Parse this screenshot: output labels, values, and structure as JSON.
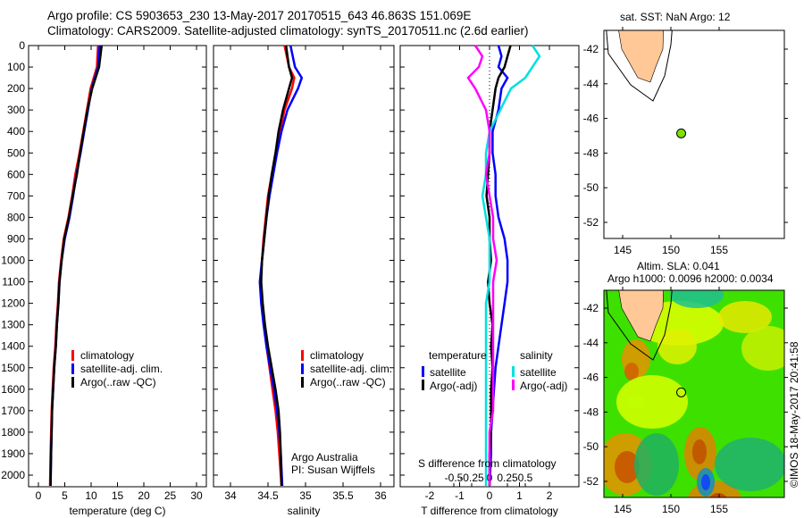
{
  "title": {
    "line1": "Argo profile: CS 5903653_230 13-May-2017 20170515_643 46.863S 151.069E",
    "line2": "Climatology: CARS2009. Satellite-adjusted climatology: synTS_20170511.nc (2.6d earlier)"
  },
  "colors": {
    "climatology": "#ff0000",
    "satellite": "#0000ff",
    "argo": "#000000",
    "sal_sat": "#00e0e0",
    "sal_argo": "#ff00ff",
    "land": "#ffc896",
    "ocean_mark": "#80e000"
  },
  "chart_data": [
    {
      "type": "line",
      "xlabel": "temperature (deg C)",
      "ylabel": "",
      "xlim": [
        -1,
        31
      ],
      "ylim": [
        2050,
        0
      ],
      "xticks": [
        "0",
        "5",
        "10",
        "15",
        "20",
        "25",
        "30"
      ],
      "xtick_values": [
        0,
        5,
        10,
        15,
        20,
        25,
        30
      ],
      "yticks": [
        "0",
        "100",
        "200",
        "300",
        "400",
        "500",
        "600",
        "700",
        "800",
        "900",
        "1000",
        "1100",
        "1200",
        "1300",
        "1400",
        "1500",
        "1600",
        "1700",
        "1800",
        "1900",
        "2000"
      ],
      "depth": [
        0,
        100,
        200,
        300,
        400,
        500,
        600,
        700,
        800,
        900,
        1000,
        1100,
        1200,
        1300,
        1400,
        1500,
        1600,
        1700,
        1800,
        1900,
        2050
      ],
      "series": [
        {
          "name": "climatology",
          "color": "#ff0000",
          "values": [
            11.3,
            11.1,
            9.9,
            9.2,
            8.5,
            7.8,
            7.0,
            6.4,
            5.7,
            4.8,
            4.3,
            3.9,
            3.7,
            3.4,
            3.2,
            2.9,
            2.7,
            2.5,
            2.4,
            2.3,
            2.2
          ]
        },
        {
          "name": "satellite-adj. clim.",
          "color": "#0000ff",
          "values": [
            11.6,
            11.3,
            10.1,
            9.4,
            8.7,
            8.0,
            7.2,
            6.6,
            5.9,
            5.0,
            4.4,
            4.0,
            3.8,
            3.5,
            3.3,
            3.0,
            2.8,
            2.6,
            2.5,
            2.4,
            2.3
          ]
        },
        {
          "name": "Argo(..raw -QC)",
          "color": "#000000",
          "values": [
            12.0,
            11.5,
            10.2,
            9.3,
            8.6,
            7.9,
            7.3,
            6.5,
            5.8,
            4.9,
            4.4,
            4.0,
            3.8,
            3.5,
            3.3,
            3.0,
            2.8,
            2.6,
            2.5,
            2.4,
            2.3
          ]
        }
      ]
    },
    {
      "type": "line",
      "xlabel": "salinity",
      "xlim": [
        33.8,
        36.2
      ],
      "ylim": [
        2050,
        0
      ],
      "xticks": [
        "34",
        "34.5",
        "35",
        "35.5",
        "36"
      ],
      "xtick_values": [
        34,
        34.5,
        35,
        35.5,
        36
      ],
      "depth": [
        0,
        100,
        150,
        200,
        300,
        400,
        500,
        600,
        700,
        800,
        900,
        1000,
        1100,
        1200,
        1300,
        1400,
        1500,
        1600,
        1700,
        1800,
        1900,
        2050
      ],
      "series": [
        {
          "name": "climatology",
          "color": "#ff0000",
          "values": [
            34.72,
            34.78,
            34.85,
            34.82,
            34.72,
            34.66,
            34.6,
            34.55,
            34.5,
            34.47,
            34.44,
            34.42,
            34.4,
            34.42,
            34.45,
            34.48,
            34.52,
            34.56,
            34.6,
            34.63,
            34.65,
            34.68
          ]
        },
        {
          "name": "satellite-adj. clim.",
          "color": "#0000ff",
          "values": [
            34.8,
            34.86,
            34.95,
            34.9,
            34.76,
            34.68,
            34.62,
            34.57,
            34.52,
            34.48,
            34.45,
            34.42,
            34.39,
            34.41,
            34.44,
            34.48,
            34.53,
            34.58,
            34.62,
            34.65,
            34.67,
            34.69
          ]
        },
        {
          "name": "Argo(..raw -QC)",
          "color": "#000000",
          "values": [
            34.74,
            34.78,
            34.82,
            34.78,
            34.7,
            34.64,
            34.6,
            34.55,
            34.51,
            34.48,
            34.45,
            34.42,
            34.41,
            34.43,
            34.46,
            34.5,
            34.55,
            34.6,
            34.64,
            34.66,
            34.67,
            34.68
          ]
        }
      ],
      "annotation": [
        "Argo Australia",
        "PI: Susan Wijffels"
      ]
    },
    {
      "type": "line",
      "xlabel": "T difference from climatology",
      "x2label": "S difference from climatology",
      "xlim": [
        -2.9,
        2.9
      ],
      "ylim": [
        2050,
        0
      ],
      "xticks": [
        "-2",
        "-1",
        "0",
        "1",
        "2"
      ],
      "xtick_values": [
        -2,
        -1,
        0,
        1,
        2
      ],
      "x2ticks": [
        "-0.5",
        "-0.25",
        "0",
        "0.25",
        "0.5"
      ],
      "x2tick_values": [
        -0.5,
        -0.25,
        0,
        0.25,
        0.5
      ],
      "depth": [
        0,
        50,
        100,
        150,
        200,
        300,
        400,
        500,
        600,
        700,
        800,
        900,
        1000,
        1100,
        1200,
        1300,
        1400,
        1500,
        1600,
        1700,
        1800,
        1900,
        2050
      ],
      "legend_headers": [
        "temperature",
        "salinity"
      ],
      "series": [
        {
          "name": "satellite",
          "group": "temperature",
          "color": "#0000ff",
          "values": [
            0.3,
            0.4,
            0.3,
            0.6,
            0.4,
            0.3,
            0.1,
            0.1,
            0.2,
            0.2,
            0.3,
            0.5,
            0.6,
            0.6,
            0.5,
            0.4,
            0.3,
            0.2,
            0.15,
            0.1,
            0.05,
            0.05,
            0.0
          ]
        },
        {
          "name": "Argo(-adj)",
          "group": "temperature",
          "color": "#000000",
          "values": [
            0.7,
            0.6,
            0.5,
            0.3,
            0.2,
            0.1,
            0.0,
            0.0,
            -0.05,
            -0.1,
            0.0,
            0.0,
            0.05,
            -0.05,
            0.0,
            0.1,
            0.05,
            0.1,
            0.05,
            0.05,
            0.05,
            0.0,
            0.0
          ]
        },
        {
          "name": "satellite",
          "group": "salinity",
          "color": "#00e0e0",
          "values": [
            0.6,
            0.7,
            0.6,
            0.5,
            0.3,
            0.15,
            0.0,
            -0.05,
            -0.05,
            -0.1,
            -0.05,
            0.0,
            0.0,
            0.0,
            -0.05,
            -0.05,
            -0.05,
            -0.05,
            -0.05,
            -0.05,
            -0.05,
            -0.05,
            -0.05
          ]
        },
        {
          "name": "Argo(-adj)",
          "group": "salinity",
          "color": "#ff00ff",
          "values": [
            -0.2,
            -0.1,
            -0.15,
            -0.3,
            -0.2,
            -0.05,
            0.0,
            0.0,
            -0.05,
            0.0,
            0.05,
            0.05,
            0.1,
            0.05,
            0.05,
            0.05,
            0.05,
            0.05,
            0.05,
            0.05,
            0.0,
            0.0,
            0.0
          ]
        }
      ]
    }
  ],
  "legend": [
    "climatology",
    "satellite-adj. clim.",
    "Argo(..raw -QC)"
  ],
  "map_sst": {
    "title": "sat. SST: NaN Argo: 12",
    "lon_ticks": [
      "145",
      "150",
      "155"
    ],
    "lat_ticks": [
      "-42",
      "-44",
      "-46",
      "-48",
      "-50",
      "-52"
    ],
    "profile_lon": 151.069,
    "profile_lat": -46.863
  },
  "map_sla": {
    "title1": "Altim. SLA: 0.041",
    "title2": "Argo h1000: 0.0096 h2000: 0.0034",
    "lon_ticks": [
      "145",
      "150",
      "155"
    ],
    "lat_ticks": [
      "-42",
      "-44",
      "-46",
      "-48",
      "-50",
      "-52"
    ]
  },
  "credit": "©IMOS 18-May-2017 20:41:58"
}
